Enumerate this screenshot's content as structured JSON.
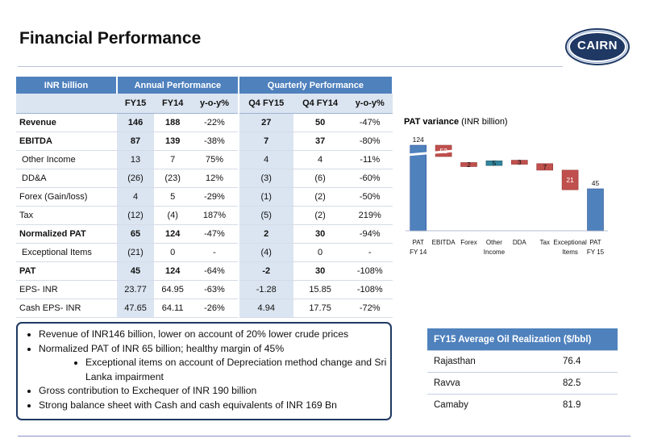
{
  "page": {
    "title": "Financial Performance",
    "logo_text": "CAIRN"
  },
  "colors": {
    "header_blue": "#4f81bd",
    "light_blue": "#dbe5f1",
    "navy": "#1f3864",
    "negative_red": "#c0504d",
    "positive_teal": "#31859c"
  },
  "table": {
    "headers": {
      "unit": "INR billion",
      "annual": "Annual Performance",
      "quarterly": "Quarterly Performance"
    },
    "subheaders": [
      "FY15",
      "FY14",
      "y-o-y%",
      "Q4 FY15",
      "Q4 FY14",
      "y-o-y%"
    ],
    "rows": [
      {
        "label": "Revenue",
        "cells": [
          "146",
          "188",
          "-22%",
          "27",
          "50",
          "-47%"
        ]
      },
      {
        "label": "EBITDA",
        "cells": [
          "87",
          "139",
          "-38%",
          "7",
          "37",
          "-80%"
        ]
      },
      {
        "label": " Other Income",
        "cells": [
          "13",
          "7",
          "75%",
          "4",
          "4",
          "-11%"
        ]
      },
      {
        "label": " DD&A",
        "cells": [
          "(26)",
          "(23)",
          "12%",
          "(3)",
          "(6)",
          "-60%"
        ]
      },
      {
        "label": "Forex (Gain/loss)",
        "cells": [
          "4",
          "5",
          "-29%",
          "(1)",
          "(2)",
          "-50%"
        ]
      },
      {
        "label": "Tax",
        "cells": [
          "(12)",
          "(4)",
          "187%",
          "(5)",
          "(2)",
          "219%"
        ]
      },
      {
        "label": "Normalized PAT",
        "cells": [
          "65",
          "124",
          "-47%",
          "2",
          "30",
          "-94%"
        ]
      },
      {
        "label": " Exceptional Items",
        "cells": [
          "(21)",
          "0",
          "-",
          "(4)",
          "0",
          "-"
        ]
      },
      {
        "label": "PAT",
        "cells": [
          "45",
          "124",
          "-64%",
          "-2",
          "30",
          "-108%"
        ]
      },
      {
        "label": "EPS- INR",
        "cells": [
          "23.77",
          "64.95",
          "-63%",
          "-1.28",
          "15.85",
          "-108%"
        ]
      },
      {
        "label": "Cash EPS- INR",
        "cells": [
          "47.65",
          "64.11",
          "-26%",
          "4.94",
          "17.75",
          "-72%"
        ]
      }
    ]
  },
  "bullets": {
    "items": [
      "Revenue of INR146 billion, lower on account of 20% lower crude prices",
      "Normalized PAT of INR 65 billion; healthy margin of 45%",
      "Gross contribution to Exchequer of INR 190 billion",
      "Strong balance sheet with Cash and cash equivalents of INR 169 Bn"
    ],
    "sub_item": "Exceptional items on account of Depreciation method change and Sri Lanka impairment"
  },
  "oil_realization": {
    "title": "FY15 Average Oil Realization ($/bbl)",
    "rows": [
      {
        "name": "Rajasthan",
        "value": "76.4"
      },
      {
        "name": "Ravva",
        "value": "82.5"
      },
      {
        "name": "Camaby",
        "value": "81.9"
      }
    ]
  },
  "chart_data": {
    "type": "bar",
    "subtype": "waterfall",
    "title_bold": "PAT variance",
    "title_unit": "(INR billion)",
    "categories": [
      "PAT FY 14",
      "EBITDA",
      "Forex",
      "Other Income",
      "DDA",
      "Tax",
      "Exceptional Items",
      "PAT FY 15"
    ],
    "category_lines": [
      [
        "PAT",
        "FY 14"
      ],
      [
        "EBITDA"
      ],
      [
        "Forex"
      ],
      [
        "Other",
        "Income"
      ],
      [
        "DDA"
      ],
      [
        "Tax"
      ],
      [
        "Exceptional",
        "Items"
      ],
      [
        "PAT",
        "FY 15"
      ]
    ],
    "values": [
      124,
      -52,
      -2,
      5,
      -3,
      -7,
      -21,
      45
    ],
    "labels": [
      "124",
      "52",
      "2",
      "5",
      "3",
      "7",
      "21",
      "45"
    ],
    "kinds": [
      "total",
      "delta",
      "delta",
      "delta",
      "delta",
      "delta",
      "delta",
      "total"
    ],
    "axis_break": true
  }
}
